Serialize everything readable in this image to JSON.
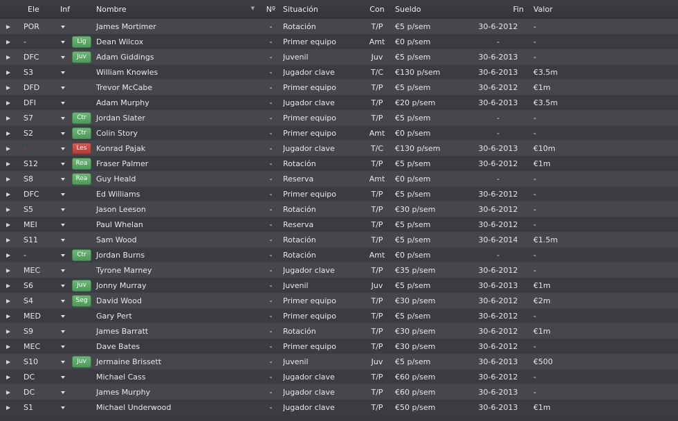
{
  "header": {
    "pos": "Ele",
    "inf": "Inf",
    "name": "Nombre",
    "num": "Nº",
    "sit": "Situación",
    "con": "Con",
    "wage": "Sueldo",
    "end": "Fin",
    "val": "Valor"
  },
  "colors": {
    "row_odd": "#46474c",
    "row_even": "#3b3c41",
    "badge_green": "#5aa866",
    "badge_red": "#c24a46"
  },
  "rows": [
    {
      "pos": "POR",
      "inf": "",
      "inf_color": "",
      "name": "James Mortimer",
      "num": "-",
      "sit": "Rotación",
      "con": "T/P",
      "wage": "€5 p/sem",
      "end": "30-6-2012",
      "val": "-"
    },
    {
      "pos": "-",
      "inf": "Lig",
      "inf_color": "green",
      "name": "Dean Wilcox",
      "num": "-",
      "sit": "Primer equipo",
      "con": "Amt",
      "wage": "€0 p/sem",
      "end": "-",
      "val": "-"
    },
    {
      "pos": "DFC",
      "inf": "Juv",
      "inf_color": "green",
      "name": "Adam Giddings",
      "num": "-",
      "sit": "Juvenil",
      "con": "Juv",
      "wage": "€5 p/sem",
      "end": "30-6-2013",
      "val": "-"
    },
    {
      "pos": "S3",
      "inf": "",
      "inf_color": "",
      "name": "William Knowles",
      "num": "-",
      "sit": "Jugador clave",
      "con": "T/C",
      "wage": "€130 p/sem",
      "end": "30-6-2013",
      "val": "€3.5m"
    },
    {
      "pos": "DFD",
      "inf": "",
      "inf_color": "",
      "name": "Trevor McCabe",
      "num": "-",
      "sit": "Primer equipo",
      "con": "T/P",
      "wage": "€5 p/sem",
      "end": "30-6-2012",
      "val": "€1m"
    },
    {
      "pos": "DFI",
      "inf": "",
      "inf_color": "",
      "name": "Adam Murphy",
      "num": "-",
      "sit": "Jugador clave",
      "con": "T/P",
      "wage": "€20 p/sem",
      "end": "30-6-2013",
      "val": "€3.5m"
    },
    {
      "pos": "S7",
      "inf": "Ctr",
      "inf_color": "green",
      "name": "Jordan Slater",
      "num": "-",
      "sit": "Primer equipo",
      "con": "T/P",
      "wage": "€5 p/sem",
      "end": "-",
      "val": "-"
    },
    {
      "pos": "S2",
      "inf": "Ctr",
      "inf_color": "green",
      "name": "Colin Story",
      "num": "-",
      "sit": "Primer equipo",
      "con": "Amt",
      "wage": "€0 p/sem",
      "end": "-",
      "val": "-"
    },
    {
      "pos": "-",
      "inf": "Les",
      "inf_color": "red",
      "name": "Konrad Pajak",
      "num": "-",
      "sit": "Jugador clave",
      "con": "T/C",
      "wage": "€130 p/sem",
      "end": "30-6-2013",
      "val": "€10m"
    },
    {
      "pos": "S12",
      "inf": "Rea",
      "inf_color": "green",
      "name": "Fraser Palmer",
      "num": "-",
      "sit": "Rotación",
      "con": "T/P",
      "wage": "€5 p/sem",
      "end": "30-6-2012",
      "val": "€1m"
    },
    {
      "pos": "S8",
      "inf": "Rea",
      "inf_color": "green",
      "name": "Guy Heald",
      "num": "-",
      "sit": "Reserva",
      "con": "Amt",
      "wage": "€0 p/sem",
      "end": "-",
      "val": "-"
    },
    {
      "pos": "DFC",
      "inf": "",
      "inf_color": "",
      "name": "Ed Williams",
      "num": "-",
      "sit": "Primer equipo",
      "con": "T/P",
      "wage": "€5 p/sem",
      "end": "30-6-2012",
      "val": "-"
    },
    {
      "pos": "S5",
      "inf": "",
      "inf_color": "",
      "name": "Jason Leeson",
      "num": "-",
      "sit": "Rotación",
      "con": "T/P",
      "wage": "€30 p/sem",
      "end": "30-6-2012",
      "val": "-"
    },
    {
      "pos": "MEI",
      "inf": "",
      "inf_color": "",
      "name": "Paul Whelan",
      "num": "-",
      "sit": "Reserva",
      "con": "T/P",
      "wage": "€5 p/sem",
      "end": "30-6-2012",
      "val": "-"
    },
    {
      "pos": "S11",
      "inf": "",
      "inf_color": "",
      "name": "Sam Wood",
      "num": "-",
      "sit": "Rotación",
      "con": "T/P",
      "wage": "€5 p/sem",
      "end": "30-6-2014",
      "val": "€1.5m"
    },
    {
      "pos": "-",
      "inf": "Ctr",
      "inf_color": "green",
      "name": "Jordan Burns",
      "num": "-",
      "sit": "Rotación",
      "con": "Amt",
      "wage": "€0 p/sem",
      "end": "-",
      "val": "-"
    },
    {
      "pos": "MEC",
      "inf": "",
      "inf_color": "",
      "name": "Tyrone Marney",
      "num": "-",
      "sit": "Jugador clave",
      "con": "T/P",
      "wage": "€35 p/sem",
      "end": "30-6-2012",
      "val": "-"
    },
    {
      "pos": "S6",
      "inf": "Juv",
      "inf_color": "green",
      "name": "Jonny Murray",
      "num": "-",
      "sit": "Juvenil",
      "con": "Juv",
      "wage": "€5 p/sem",
      "end": "30-6-2013",
      "val": "€1m"
    },
    {
      "pos": "S4",
      "inf": "Seg",
      "inf_color": "green",
      "name": "David Wood",
      "num": "-",
      "sit": "Primer equipo",
      "con": "T/P",
      "wage": "€30 p/sem",
      "end": "30-6-2012",
      "val": "€2m"
    },
    {
      "pos": "MED",
      "inf": "",
      "inf_color": "",
      "name": "Gary Pert",
      "num": "-",
      "sit": "Primer equipo",
      "con": "T/P",
      "wage": "€5 p/sem",
      "end": "30-6-2012",
      "val": "-"
    },
    {
      "pos": "S9",
      "inf": "",
      "inf_color": "",
      "name": "James Barratt",
      "num": "-",
      "sit": "Rotación",
      "con": "T/P",
      "wage": "€30 p/sem",
      "end": "30-6-2012",
      "val": "€1m"
    },
    {
      "pos": "MEC",
      "inf": "",
      "inf_color": "",
      "name": "Dave Bates",
      "num": "-",
      "sit": "Primer equipo",
      "con": "T/P",
      "wage": "€30 p/sem",
      "end": "30-6-2012",
      "val": "-"
    },
    {
      "pos": "S10",
      "inf": "Juv",
      "inf_color": "green",
      "name": "Jermaine Brissett",
      "num": "-",
      "sit": "Juvenil",
      "con": "Juv",
      "wage": "€5 p/sem",
      "end": "30-6-2013",
      "val": "€500"
    },
    {
      "pos": "DC",
      "inf": "",
      "inf_color": "",
      "name": "Michael Cass",
      "num": "-",
      "sit": "Jugador clave",
      "con": "T/P",
      "wage": "€60 p/sem",
      "end": "30-6-2012",
      "val": "-"
    },
    {
      "pos": "DC",
      "inf": "",
      "inf_color": "",
      "name": "James Murphy",
      "num": "-",
      "sit": "Jugador clave",
      "con": "T/P",
      "wage": "€60 p/sem",
      "end": "30-6-2013",
      "val": "-"
    },
    {
      "pos": "S1",
      "inf": "",
      "inf_color": "",
      "name": "Michael Underwood",
      "num": "-",
      "sit": "Jugador clave",
      "con": "T/P",
      "wage": "€50 p/sem",
      "end": "30-6-2013",
      "val": "€1m"
    }
  ]
}
